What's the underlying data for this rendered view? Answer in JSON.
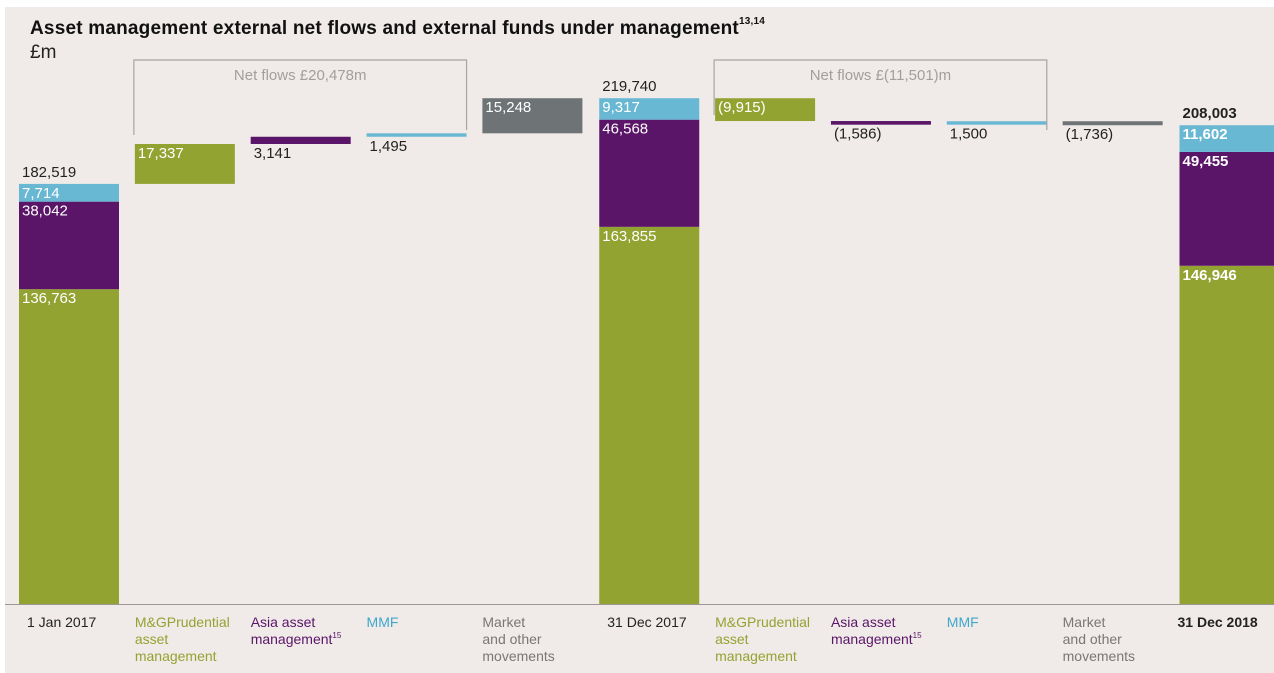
{
  "title": "Asset management external net flows and external funds under management",
  "title_superscript": "13,14",
  "unit": "£m",
  "colors": {
    "mg": "#93a332",
    "asia": "#5a1568",
    "mmf": "#69b8d3",
    "market": "#6e7376",
    "bracket": "#a8a4a2",
    "axis": "#9b9793",
    "background": "#f0ebe8"
  },
  "chart_data": {
    "type": "bar",
    "subtype": "waterfall-stacked",
    "unit": "£m",
    "categories": [
      "1 Jan 2017",
      "M&GPrudential asset management",
      "Asia asset management",
      "MMF",
      "Market and other movements",
      "31 Dec 2017",
      "M&GPrudential asset management",
      "Asia asset management",
      "MMF",
      "Market and other movements",
      "31 Dec 2018"
    ],
    "category_labels": [
      {
        "lines": [
          "1 Jan 2017"
        ],
        "color": "#222222",
        "bold": false
      },
      {
        "lines": [
          "M&GPrudential",
          "asset",
          "management"
        ],
        "color": "#93a332",
        "bold": false
      },
      {
        "lines": [
          "Asia asset",
          "management"
        ],
        "sup": "15",
        "color": "#5a1568",
        "bold": false
      },
      {
        "lines": [
          "MMF"
        ],
        "color": "#3fa6cc",
        "bold": false
      },
      {
        "lines": [
          "Market",
          "and other",
          "movements"
        ],
        "color": "#7a7674",
        "bold": false
      },
      {
        "lines": [
          "31 Dec 2017"
        ],
        "color": "#222222",
        "bold": false
      },
      {
        "lines": [
          "M&GPrudential",
          "asset",
          "management"
        ],
        "color": "#93a332",
        "bold": false
      },
      {
        "lines": [
          "Asia asset",
          "management"
        ],
        "sup": "15",
        "color": "#5a1568",
        "bold": false
      },
      {
        "lines": [
          "MMF"
        ],
        "color": "#3fa6cc",
        "bold": false
      },
      {
        "lines": [
          "Market",
          "and other",
          "movements"
        ],
        "color": "#7a7674",
        "bold": false
      },
      {
        "lines": [
          "31 Dec 2018"
        ],
        "color": "#222222",
        "bold": true
      }
    ],
    "totals": [
      {
        "index": 0,
        "total": 182519,
        "total_label": "182,519",
        "bold": false,
        "segments": [
          {
            "name": "M&GPrudential",
            "value": 136763,
            "label": "136,763"
          },
          {
            "name": "Asia",
            "value": 38042,
            "label": "38,042"
          },
          {
            "name": "MMF",
            "value": 7714,
            "label": "7,714"
          }
        ]
      },
      {
        "index": 5,
        "total": 219740,
        "total_label": "219,740",
        "bold": false,
        "segments": [
          {
            "name": "M&GPrudential",
            "value": 163855,
            "label": "163,855"
          },
          {
            "name": "Asia",
            "value": 46568,
            "label": "46,568"
          },
          {
            "name": "MMF",
            "value": 9317,
            "label": "9,317"
          }
        ]
      },
      {
        "index": 10,
        "total": 208003,
        "total_label": "208,003",
        "bold": true,
        "segments": [
          {
            "name": "M&GPrudential",
            "value": 146946,
            "label": "146,946"
          },
          {
            "name": "Asia",
            "value": 49455,
            "label": "49,455"
          },
          {
            "name": "MMF",
            "value": 11602,
            "label": "11,602"
          }
        ]
      }
    ],
    "changes": [
      {
        "index": 1,
        "value": 17337,
        "label": "17,337",
        "color_key": "mg"
      },
      {
        "index": 2,
        "value": 3141,
        "label": "3,141",
        "color_key": "asia"
      },
      {
        "index": 3,
        "value": 1495,
        "label": "1,495",
        "color_key": "mmf"
      },
      {
        "index": 4,
        "value": 15248,
        "label": "15,248",
        "color_key": "market"
      },
      {
        "index": 6,
        "value": -9915,
        "label": "(9,915)",
        "color_key": "mg"
      },
      {
        "index": 7,
        "value": -1586,
        "label": "(1,586)",
        "color_key": "asia"
      },
      {
        "index": 8,
        "value": 1500,
        "label": "1,500",
        "color_key": "mmf"
      },
      {
        "index": 9,
        "value": -1736,
        "label": "(1,736)",
        "color_key": "market"
      }
    ],
    "annotations": [
      {
        "text": "Net flows £20,478m",
        "from_index": 1,
        "to_index": 3
      },
      {
        "text": "Net flows £(11,501)m",
        "from_index": 6,
        "to_index": 8
      }
    ],
    "ylim": [
      0,
      232000
    ]
  }
}
